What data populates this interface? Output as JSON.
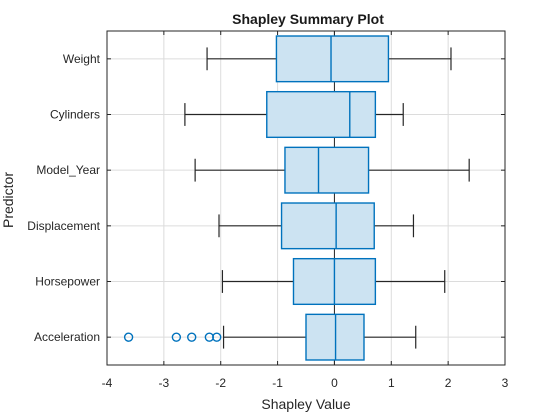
{
  "chart_data": {
    "type": "boxplot",
    "title": "Shapley Summary Plot",
    "xlabel": "Shapley Value",
    "ylabel": "Predictor",
    "xlim": [
      -4,
      3
    ],
    "xticks": [
      -4,
      -3,
      -2,
      -1,
      0,
      1,
      2,
      3
    ],
    "grid": true,
    "colors": {
      "box_fill": "#cce3f2",
      "box_edge": "#0072bd",
      "whisker": "#262626",
      "zero_line": "#262626"
    },
    "categories": [
      "Weight",
      "Cylinders",
      "Model_Year",
      "Displacement",
      "Horsepower",
      "Acceleration"
    ],
    "boxes": [
      {
        "name": "Weight",
        "whisker_low": -2.24,
        "q1": -1.02,
        "median": -0.06,
        "q3": 0.95,
        "whisker_high": 2.05,
        "outliers": []
      },
      {
        "name": "Cylinders",
        "whisker_low": -2.63,
        "q1": -1.19,
        "median": 0.27,
        "q3": 0.72,
        "whisker_high": 1.21,
        "outliers": []
      },
      {
        "name": "Model_Year",
        "whisker_low": -2.45,
        "q1": -0.87,
        "median": -0.28,
        "q3": 0.6,
        "whisker_high": 2.37,
        "outliers": []
      },
      {
        "name": "Displacement",
        "whisker_low": -2.03,
        "q1": -0.93,
        "median": 0.03,
        "q3": 0.7,
        "whisker_high": 1.39,
        "outliers": []
      },
      {
        "name": "Horsepower",
        "whisker_low": -1.97,
        "q1": -0.72,
        "median": 0.0,
        "q3": 0.72,
        "whisker_high": 1.94,
        "outliers": []
      },
      {
        "name": "Acceleration",
        "whisker_low": -1.95,
        "q1": -0.5,
        "median": 0.02,
        "q3": 0.52,
        "whisker_high": 1.43,
        "outliers": [
          -3.62,
          -2.78,
          -2.51,
          -2.2,
          -2.07
        ]
      }
    ]
  }
}
